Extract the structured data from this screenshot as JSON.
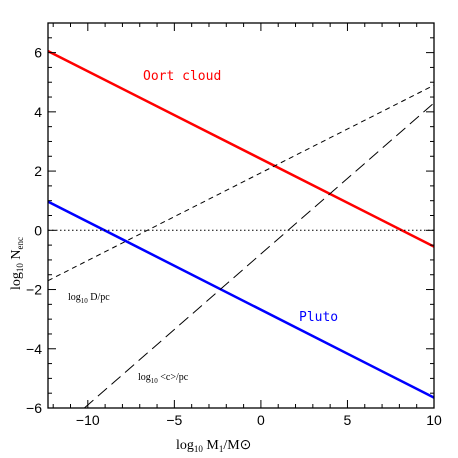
{
  "chart_data": {
    "type": "line",
    "xlim": [
      -12.3,
      10
    ],
    "ylim": [
      -6,
      7
    ],
    "xticks": [
      -10,
      -5,
      0,
      5,
      10
    ],
    "xtick_labels": [
      "−10",
      "−5",
      "0",
      "5",
      "10"
    ],
    "yticks": [
      -6,
      -4,
      -2,
      0,
      2,
      4,
      6
    ],
    "ytick_labels": [
      "−6",
      "−4",
      "−2",
      "0",
      "2",
      "4",
      "6"
    ],
    "xlabel": {
      "main": "log",
      "sub": "10",
      "rest": " M",
      "sub2": "1",
      "tail": "/M⊙"
    },
    "ylabel": {
      "main": "log",
      "sub": "10",
      "rest": " N",
      "sub2": "enc"
    },
    "series": [
      {
        "name": "Oort cloud",
        "color": "#ff0000",
        "style": "solid",
        "width": 2.5,
        "x": [
          -12.3,
          10
        ],
        "y": [
          6.05,
          -0.55
        ]
      },
      {
        "name": "Pluto",
        "color": "#0000ff",
        "style": "solid",
        "width": 2.5,
        "x": [
          -12.3,
          10
        ],
        "y": [
          0.97,
          -5.65
        ]
      },
      {
        "color": "#000000",
        "style": "short-dash",
        "width": 1,
        "x": [
          -12.3,
          10
        ],
        "y": [
          -1.7,
          4.9
        ]
      },
      {
        "color": "#000000",
        "style": "long-dash",
        "width": 1,
        "x": [
          -10.2,
          10
        ],
        "y": [
          -6,
          4.3
        ]
      },
      {
        "color": "#000000",
        "style": "dotted",
        "width": 1,
        "x": [
          -12.3,
          10
        ],
        "y": [
          0,
          0
        ]
      }
    ],
    "annotations": [
      {
        "id": "D",
        "main": "log",
        "sub": "10",
        "rest": " D/pc"
      },
      {
        "id": "c",
        "main": "log",
        "sub": "10",
        "rest": " <c>/pc"
      }
    ]
  }
}
